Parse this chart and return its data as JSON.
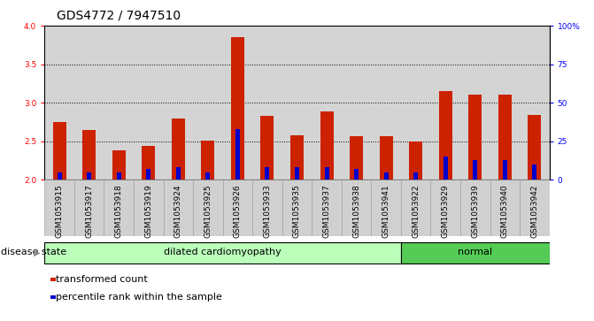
{
  "title": "GDS4772 / 7947510",
  "samples": [
    "GSM1053915",
    "GSM1053917",
    "GSM1053918",
    "GSM1053919",
    "GSM1053924",
    "GSM1053925",
    "GSM1053926",
    "GSM1053933",
    "GSM1053935",
    "GSM1053937",
    "GSM1053938",
    "GSM1053941",
    "GSM1053922",
    "GSM1053929",
    "GSM1053939",
    "GSM1053940",
    "GSM1053942"
  ],
  "transformed_count": [
    2.75,
    2.65,
    2.38,
    2.44,
    2.8,
    2.51,
    3.85,
    2.83,
    2.58,
    2.89,
    2.56,
    2.57,
    2.5,
    3.15,
    3.1,
    3.1,
    2.84
  ],
  "percentile_rank": [
    5,
    5,
    5,
    7,
    8,
    5,
    33,
    8,
    8,
    8,
    7,
    5,
    5,
    15,
    13,
    13,
    10
  ],
  "disease_groups": [
    {
      "label": "dilated cardiomyopathy",
      "start": 0,
      "end": 11,
      "color": "#bbffbb"
    },
    {
      "label": "normal",
      "start": 12,
      "end": 16,
      "color": "#55cc55"
    }
  ],
  "ylim_left": [
    2.0,
    4.0
  ],
  "ylim_right": [
    0,
    100
  ],
  "yticks_left": [
    2.0,
    2.5,
    3.0,
    3.5,
    4.0
  ],
  "yticks_right": [
    0,
    25,
    50,
    75,
    100
  ],
  "ytick_labels_right": [
    "0",
    "25",
    "50",
    "75",
    "100%"
  ],
  "bar_color_red": "#cc2200",
  "bar_color_blue": "#0000cc",
  "bar_width": 0.45,
  "blue_bar_width": 0.15,
  "legend_items": [
    {
      "label": "transformed count",
      "color": "#cc2200"
    },
    {
      "label": "percentile rank within the sample",
      "color": "#0000cc"
    }
  ],
  "disease_state_label": "disease state",
  "title_fontsize": 10,
  "tick_fontsize": 6.5,
  "label_fontsize": 8
}
